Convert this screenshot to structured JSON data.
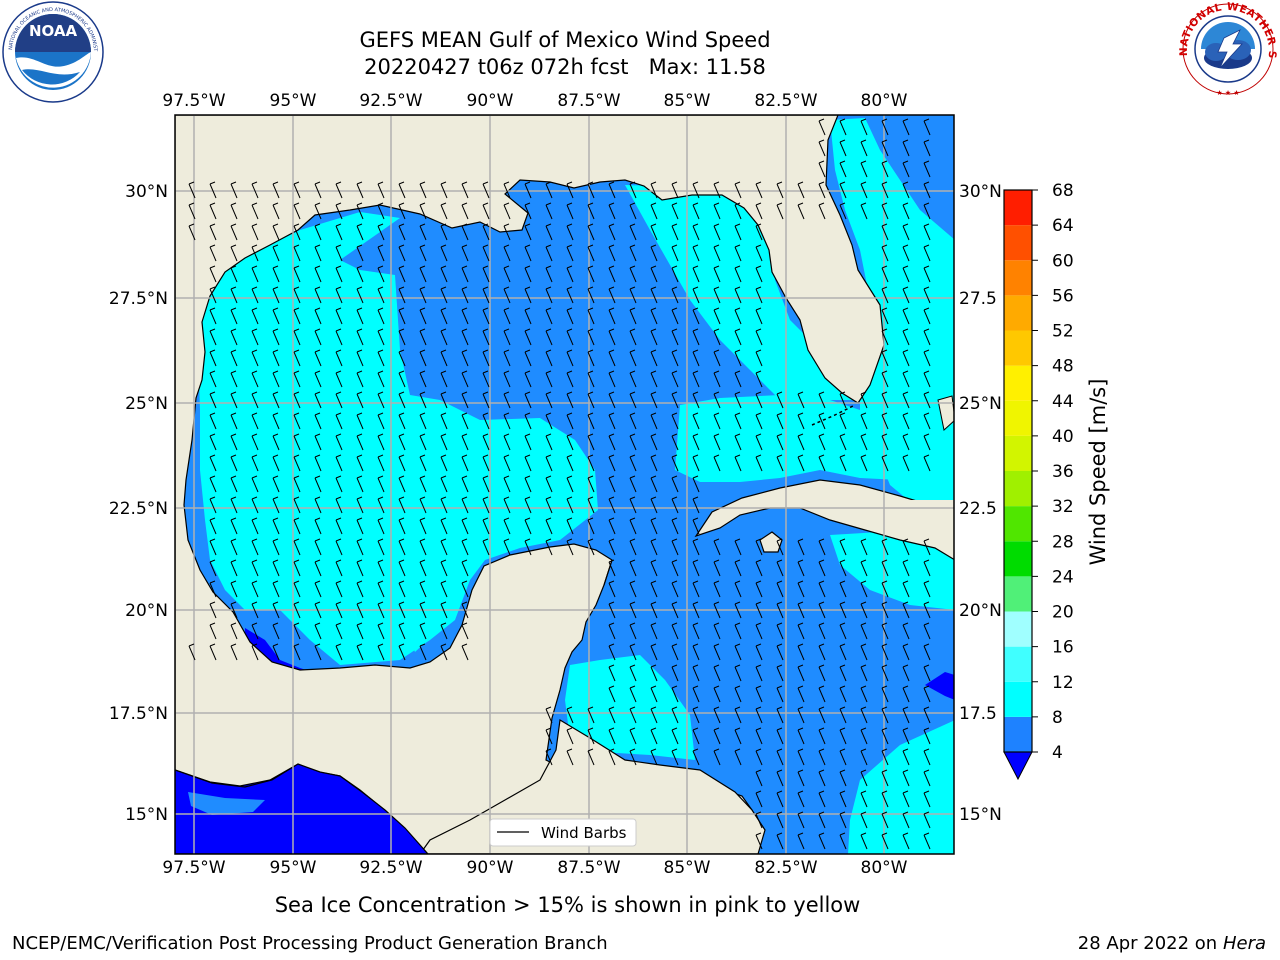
{
  "title": {
    "line1": "GEFS MEAN Gulf of Mexico Wind Speed",
    "line2": "20220427 t06z 072h fcst   Max: 11.58"
  },
  "logos": {
    "left": {
      "icon": "noaa-logo",
      "text": "NOAA",
      "ring_text": "NATIONAL OCEANIC AND ATMOSPHERIC ADMINISTRATION · U.S. DEPARTMENT OF COMMERCE"
    },
    "right": {
      "icon": "nws-logo",
      "ring_text": "NATIONAL WEATHER SERVICE"
    }
  },
  "map": {
    "lon_labels": [
      "97.5°W",
      "95°W",
      "92.5°W",
      "90°W",
      "87.5°W",
      "85°W",
      "82.5°W",
      "80°W"
    ],
    "lat_labels_left": [
      "30°N",
      "27.5°N",
      "25°N",
      "22.5°N",
      "20°N",
      "17.5°N",
      "15°N"
    ],
    "lat_labels_right": [
      "30°N",
      "27.5",
      "25°N",
      "22.5",
      "20°N",
      "17.5",
      "15°N"
    ],
    "lon_range": [
      -98,
      -78.3
    ],
    "lat_range": [
      14,
      31.6
    ],
    "gridlines": true,
    "legend": {
      "label": "Wind Barbs",
      "placement": "bottom-center"
    },
    "colors": {
      "land": "#eeecdc",
      "speed_4_8": "#1f8cff",
      "speed_8_12": "#00ffff",
      "speed_lt_4": "#0000ff",
      "grid": "#b0b0b0"
    }
  },
  "colorbar": {
    "label": "Wind Speed [m/s]",
    "tick_labels": [
      "68",
      "64",
      "60",
      "56",
      "52",
      "48",
      "44",
      "40",
      "36",
      "32",
      "28",
      "24",
      "20",
      "16",
      "12",
      "8",
      "4"
    ],
    "bands": [
      {
        "from": 4,
        "to": 8,
        "color": "#1e82ff"
      },
      {
        "from": 8,
        "to": 12,
        "color": "#00ffff"
      },
      {
        "from": 12,
        "to": 16,
        "color": "#40ffff"
      },
      {
        "from": 16,
        "to": 20,
        "color": "#a0ffff"
      },
      {
        "from": 20,
        "to": 24,
        "color": "#50f078"
      },
      {
        "from": 24,
        "to": 28,
        "color": "#00dc00"
      },
      {
        "from": 28,
        "to": 32,
        "color": "#50e600"
      },
      {
        "from": 32,
        "to": 36,
        "color": "#a0f000"
      },
      {
        "from": 36,
        "to": 40,
        "color": "#d2f500"
      },
      {
        "from": 40,
        "to": 44,
        "color": "#f0f500"
      },
      {
        "from": 44,
        "to": 48,
        "color": "#fff000"
      },
      {
        "from": 48,
        "to": 52,
        "color": "#ffc800"
      },
      {
        "from": 52,
        "to": 56,
        "color": "#ffaa00"
      },
      {
        "from": 56,
        "to": 60,
        "color": "#ff8200"
      },
      {
        "from": 60,
        "to": 64,
        "color": "#ff5000"
      },
      {
        "from": 64,
        "to": 68,
        "color": "#ff1e00"
      }
    ],
    "under_color": "#0000ff"
  },
  "footer": {
    "caption": "Sea Ice Concentration > 15% is shown in pink to yellow",
    "credit": "NCEP/EMC/Verification Post Processing Product Generation Branch",
    "date": "28 Apr 2022 on ",
    "machine": "Hera"
  }
}
